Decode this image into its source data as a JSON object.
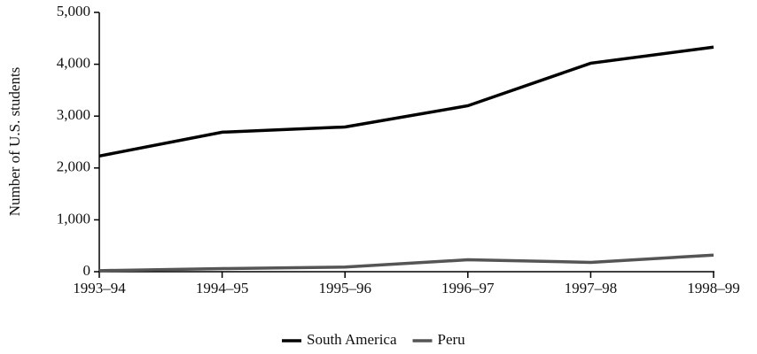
{
  "chart_data": {
    "type": "line",
    "ylabel": "Number of U.S. students",
    "categories": [
      "1993–94",
      "1994–95",
      "1995–96",
      "1996–97",
      "1997–98",
      "1998–99"
    ],
    "series": [
      {
        "name": "South America",
        "color": "#000000",
        "values": [
          2230,
          2690,
          2790,
          3200,
          4020,
          4330
        ]
      },
      {
        "name": "Peru",
        "color": "#555555",
        "values": [
          20,
          60,
          90,
          230,
          180,
          320
        ]
      }
    ],
    "ylim": [
      0,
      5000
    ],
    "yticks": [
      0,
      {
        "value": 1000,
        "label": "1,000"
      },
      {
        "value": 2000,
        "label": "2,000"
      },
      {
        "value": 3000,
        "label": "3,000"
      },
      {
        "value": 4000,
        "label": "4,000"
      },
      {
        "value": 5000,
        "label": "5,000"
      }
    ],
    "legend": "bottom"
  }
}
